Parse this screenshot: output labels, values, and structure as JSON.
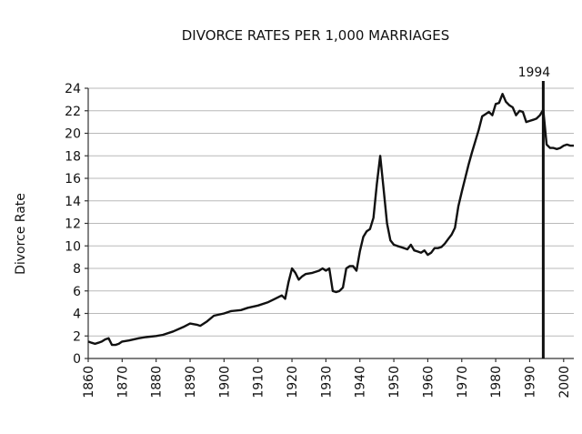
{
  "chart_data": {
    "type": "line",
    "title": "DIVORCE RATES PER 1,000 MARRIAGES",
    "xlabel": "",
    "ylabel": "Divorce Rate",
    "xlim": [
      1860,
      2003
    ],
    "ylim": [
      0,
      24
    ],
    "x_ticks": [
      1860,
      1870,
      1880,
      1890,
      1900,
      1910,
      1920,
      1930,
      1940,
      1950,
      1960,
      1970,
      1980,
      1990,
      2000
    ],
    "y_ticks": [
      0,
      2,
      4,
      6,
      8,
      10,
      12,
      14,
      16,
      18,
      20,
      22,
      24
    ],
    "grid": true,
    "series": [
      {
        "name": "",
        "color": "#111111",
        "x": [
          1860,
          1861,
          1862,
          1863,
          1864,
          1865,
          1866,
          1867,
          1868,
          1869,
          1870,
          1872,
          1875,
          1877,
          1880,
          1882,
          1885,
          1888,
          1890,
          1892,
          1893,
          1895,
          1897,
          1900,
          1902,
          1905,
          1907,
          1910,
          1913,
          1915,
          1917,
          1918,
          1919,
          1920,
          1921,
          1922,
          1923,
          1924,
          1926,
          1928,
          1929,
          1930,
          1931,
          1932,
          1933,
          1934,
          1935,
          1936,
          1937,
          1938,
          1939,
          1940,
          1941,
          1942,
          1943,
          1944,
          1945,
          1946,
          1947,
          1948,
          1949,
          1950,
          1951,
          1952,
          1953,
          1954,
          1955,
          1956,
          1957,
          1958,
          1959,
          1960,
          1961,
          1962,
          1963,
          1964,
          1965,
          1966,
          1967,
          1968,
          1969,
          1970,
          1971,
          1972,
          1973,
          1974,
          1975,
          1976,
          1977,
          1978,
          1979,
          1980,
          1981,
          1982,
          1983,
          1984,
          1985,
          1986,
          1987,
          1988,
          1989,
          1990,
          1991,
          1992,
          1993,
          1994,
          1995,
          1996,
          1997,
          1998,
          1999,
          2000,
          2001,
          2002,
          2003
        ],
        "values": [
          1.5,
          1.4,
          1.3,
          1.4,
          1.5,
          1.7,
          1.8,
          1.2,
          1.2,
          1.3,
          1.5,
          1.6,
          1.8,
          1.9,
          2.0,
          2.1,
          2.4,
          2.8,
          3.1,
          3.0,
          2.9,
          3.3,
          3.8,
          4.0,
          4.2,
          4.3,
          4.5,
          4.7,
          5.0,
          5.3,
          5.6,
          5.3,
          6.8,
          8.0,
          7.6,
          7.0,
          7.3,
          7.5,
          7.6,
          7.8,
          8.0,
          7.8,
          8.0,
          6.0,
          5.9,
          6.0,
          6.3,
          8.0,
          8.2,
          8.2,
          7.8,
          9.5,
          10.8,
          11.3,
          11.5,
          12.5,
          15.5,
          18.0,
          15.0,
          12.0,
          10.5,
          10.1,
          10.0,
          9.9,
          9.8,
          9.7,
          10.1,
          9.6,
          9.5,
          9.4,
          9.6,
          9.2,
          9.4,
          9.8,
          9.8,
          9.9,
          10.2,
          10.6,
          11.0,
          11.6,
          13.5,
          14.8,
          16.0,
          17.2,
          18.3,
          19.3,
          20.3,
          21.5,
          21.7,
          21.9,
          21.6,
          22.6,
          22.7,
          23.5,
          22.8,
          22.5,
          22.3,
          21.6,
          22.0,
          21.9,
          21.0,
          21.1,
          21.2,
          21.3,
          21.6,
          22.1,
          19.0,
          18.7,
          18.7,
          18.6,
          18.7,
          18.9,
          19.0,
          18.9,
          18.9
        ]
      }
    ],
    "annotations": [
      {
        "type": "vline",
        "x": 1994,
        "label": "1994"
      }
    ]
  }
}
